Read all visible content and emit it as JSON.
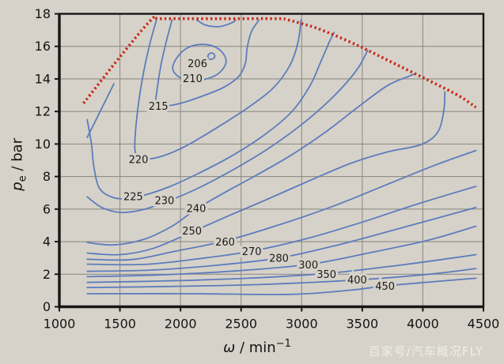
{
  "watermark": {
    "text": "百家号/汽车概况FLY"
  },
  "colors": {
    "background": "#d6d2c9",
    "grid": "#8f8d86",
    "frame": "#161616",
    "tick_text": "#141414",
    "contour_line": "#5d7cbc",
    "contour_label": "#1b1b1b",
    "full_load": "#c8281c"
  },
  "chart_data": {
    "type": "contour",
    "description": "Engine BSFC map: brake specific fuel consumption contours (g/kWh) over speed and brake mean effective pressure, with red dashed full-load limit curve",
    "xlabel_symbol": "ω",
    "xlabel_unit": "min",
    "xlabel_exponent": "−1",
    "ylabel_symbol": "p",
    "ylabel_subscript": "e",
    "ylabel_unit": "bar",
    "label_sep": " / ",
    "x_range": [
      1000,
      4500
    ],
    "y_range": [
      0,
      18
    ],
    "x_ticks": [
      1000,
      1500,
      2000,
      2500,
      3000,
      3500,
      4000,
      4500
    ],
    "y_ticks": [
      0,
      2,
      4,
      6,
      8,
      10,
      12,
      14,
      16,
      18
    ],
    "grid": true,
    "legend": "none",
    "full_load_curve": {
      "style": "dashed",
      "points": [
        [
          1200,
          12.5
        ],
        [
          1500,
          15.35
        ],
        [
          1762,
          17.66
        ],
        [
          1830,
          17.7
        ],
        [
          2300,
          17.7
        ],
        [
          2800,
          17.7
        ],
        [
          2868,
          17.66
        ],
        [
          3000,
          17.4
        ],
        [
          3150,
          17.05
        ],
        [
          3450,
          16.1
        ],
        [
          3750,
          15.0
        ],
        [
          4050,
          13.9
        ],
        [
          4300,
          12.95
        ],
        [
          4438,
          12.25
        ]
      ]
    },
    "contours": [
      {
        "level": 206,
        "label": "206",
        "label_x": 2140,
        "label_y": 14.95,
        "closed": true,
        "points": [
          [
            2235,
            15.52
          ],
          [
            2258,
            15.6
          ],
          [
            2278,
            15.5
          ],
          [
            2282,
            15.35
          ],
          [
            2262,
            15.22
          ],
          [
            2238,
            15.22
          ],
          [
            2226,
            15.36
          ]
        ]
      },
      {
        "level": 210,
        "label": "210",
        "label_x": 2100,
        "label_y": 14.02,
        "closed": true,
        "points": [
          [
            1935,
            14.65
          ],
          [
            1975,
            15.35
          ],
          [
            2060,
            15.92
          ],
          [
            2175,
            16.12
          ],
          [
            2290,
            15.95
          ],
          [
            2362,
            15.45
          ],
          [
            2372,
            14.9
          ],
          [
            2308,
            14.3
          ],
          [
            2195,
            13.97
          ],
          [
            2070,
            13.9
          ],
          [
            1982,
            14.15
          ]
        ]
      },
      {
        "level": 210,
        "label": "",
        "closed": false,
        "points": [
          [
            2135,
            17.62
          ],
          [
            2210,
            17.3
          ],
          [
            2325,
            17.22
          ],
          [
            2425,
            17.45
          ],
          [
            2455,
            17.62
          ]
        ]
      },
      {
        "level": 215,
        "label": "215",
        "label_x": 1818,
        "label_y": 12.32,
        "closed": false,
        "points": [
          [
            1930,
            17.62
          ],
          [
            1886,
            16.4
          ],
          [
            1840,
            14.9
          ],
          [
            1806,
            13.3
          ],
          [
            1802,
            12.6
          ],
          [
            1868,
            12.35
          ],
          [
            2010,
            12.52
          ],
          [
            2190,
            12.97
          ],
          [
            2360,
            13.5
          ],
          [
            2480,
            14.15
          ],
          [
            2535,
            14.95
          ],
          [
            2550,
            15.9
          ],
          [
            2585,
            16.9
          ],
          [
            2648,
            17.62
          ]
        ]
      },
      {
        "level": 220,
        "label": "220",
        "label_x": 1653,
        "label_y": 9.05,
        "closed": false,
        "points": [
          [
            1802,
            17.62
          ],
          [
            1748,
            16.2
          ],
          [
            1695,
            14.4
          ],
          [
            1652,
            12.4
          ],
          [
            1625,
            10.4
          ],
          [
            1632,
            9.4
          ],
          [
            1702,
            9.08
          ],
          [
            1850,
            9.26
          ],
          [
            2050,
            9.9
          ],
          [
            2300,
            11.0
          ],
          [
            2550,
            12.2
          ],
          [
            2760,
            13.4
          ],
          [
            2900,
            14.8
          ],
          [
            2968,
            16.2
          ],
          [
            2995,
            17.62
          ]
        ]
      },
      {
        "level": 225,
        "label": "225",
        "label_x": 1610,
        "label_y": 6.78,
        "closed": false,
        "points": [
          [
            1230,
            11.5
          ],
          [
            1265,
            10.0
          ],
          [
            1285,
            8.6
          ],
          [
            1330,
            7.3
          ],
          [
            1430,
            6.75
          ],
          [
            1560,
            6.63
          ],
          [
            1700,
            6.85
          ],
          [
            1900,
            7.35
          ],
          [
            2150,
            8.2
          ],
          [
            2430,
            9.3
          ],
          [
            2700,
            10.6
          ],
          [
            2920,
            12.0
          ],
          [
            3070,
            13.6
          ],
          [
            3160,
            15.1
          ],
          [
            3230,
            16.3
          ],
          [
            3268,
            16.85
          ]
        ]
      },
      {
        "level": 230,
        "label": "",
        "closed": false,
        "points": [
          [
            1230,
            10.4
          ],
          [
            1290,
            11.3
          ],
          [
            1370,
            12.5
          ],
          [
            1450,
            13.7
          ]
        ]
      },
      {
        "level": 230,
        "label": "230",
        "label_x": 1868,
        "label_y": 6.52,
        "closed": false,
        "points": [
          [
            1230,
            6.75
          ],
          [
            1350,
            6.1
          ],
          [
            1500,
            5.8
          ],
          [
            1680,
            5.95
          ],
          [
            1900,
            6.5
          ],
          [
            2150,
            7.3
          ],
          [
            2430,
            8.4
          ],
          [
            2720,
            9.7
          ],
          [
            3000,
            11.2
          ],
          [
            3260,
            12.9
          ],
          [
            3450,
            14.5
          ],
          [
            3545,
            15.75
          ]
        ]
      },
      {
        "level": 240,
        "label": "240",
        "label_x": 2130,
        "label_y": 6.05,
        "closed": false,
        "points": [
          [
            1230,
            3.95
          ],
          [
            1450,
            3.8
          ],
          [
            1700,
            4.15
          ],
          [
            1930,
            4.95
          ],
          [
            2130,
            6.0
          ],
          [
            2360,
            7.0
          ],
          [
            2630,
            8.1
          ],
          [
            2910,
            9.3
          ],
          [
            3190,
            10.7
          ],
          [
            3470,
            12.3
          ],
          [
            3710,
            13.6
          ],
          [
            3880,
            14.15
          ],
          [
            3930,
            14.3
          ]
        ]
      },
      {
        "level": 250,
        "label": "250",
        "label_x": 2095,
        "label_y": 4.65,
        "closed": false,
        "points": [
          [
            1230,
            3.3
          ],
          [
            1500,
            3.2
          ],
          [
            1780,
            3.6
          ],
          [
            2095,
            4.6
          ],
          [
            2400,
            5.6
          ],
          [
            2700,
            6.55
          ],
          [
            3050,
            7.7
          ],
          [
            3400,
            8.8
          ],
          [
            3700,
            9.5
          ],
          [
            3980,
            9.95
          ],
          [
            4120,
            10.7
          ],
          [
            4172,
            12.0
          ],
          [
            4182,
            13.2
          ]
        ]
      },
      {
        "level": 260,
        "label": "260",
        "label_x": 2368,
        "label_y": 3.97,
        "closed": false,
        "points": [
          [
            1230,
            2.92
          ],
          [
            1600,
            2.9
          ],
          [
            1950,
            3.4
          ],
          [
            2370,
            4.05
          ],
          [
            2800,
            5.0
          ],
          [
            3250,
            6.15
          ],
          [
            3700,
            7.5
          ],
          [
            4100,
            8.7
          ],
          [
            4438,
            9.6
          ]
        ]
      },
      {
        "level": 270,
        "label": "270",
        "label_x": 2588,
        "label_y": 3.4,
        "closed": false,
        "points": [
          [
            1230,
            2.62
          ],
          [
            1700,
            2.6
          ],
          [
            2150,
            2.95
          ],
          [
            2590,
            3.42
          ],
          [
            3050,
            4.2
          ],
          [
            3500,
            5.2
          ],
          [
            3950,
            6.3
          ],
          [
            4438,
            7.4
          ]
        ]
      },
      {
        "level": 280,
        "label": "280",
        "label_x": 2812,
        "label_y": 2.98,
        "closed": false,
        "points": [
          [
            1230,
            2.18
          ],
          [
            1750,
            2.25
          ],
          [
            2300,
            2.55
          ],
          [
            2815,
            3.0
          ],
          [
            3300,
            3.8
          ],
          [
            3800,
            4.8
          ],
          [
            4438,
            6.1
          ]
        ]
      },
      {
        "level": 300,
        "label": "300",
        "label_x": 3055,
        "label_y": 2.57,
        "closed": false,
        "points": [
          [
            1230,
            1.85
          ],
          [
            1800,
            1.95
          ],
          [
            2450,
            2.2
          ],
          [
            3057,
            2.6
          ],
          [
            3550,
            3.3
          ],
          [
            4050,
            4.1
          ],
          [
            4438,
            4.95
          ]
        ]
      },
      {
        "level": 350,
        "label": "350",
        "label_x": 3205,
        "label_y": 1.98,
        "closed": false,
        "points": [
          [
            1230,
            1.5
          ],
          [
            1850,
            1.58
          ],
          [
            2550,
            1.75
          ],
          [
            3207,
            2.05
          ],
          [
            3750,
            2.5
          ],
          [
            4250,
            3.0
          ],
          [
            4438,
            3.2
          ]
        ]
      },
      {
        "level": 400,
        "label": "400",
        "label_x": 3458,
        "label_y": 1.64,
        "closed": false,
        "points": [
          [
            1230,
            1.18
          ],
          [
            1950,
            1.25
          ],
          [
            2700,
            1.38
          ],
          [
            3461,
            1.65
          ],
          [
            4050,
            2.0
          ],
          [
            4438,
            2.35
          ]
        ]
      },
      {
        "level": 450,
        "label": "450",
        "label_x": 3688,
        "label_y": 1.26,
        "closed": false,
        "points": [
          [
            1230,
            0.8
          ],
          [
            2100,
            0.8
          ],
          [
            2900,
            0.76
          ],
          [
            3400,
            1.02
          ],
          [
            3690,
            1.28
          ],
          [
            4100,
            1.55
          ],
          [
            4438,
            1.75
          ]
        ]
      }
    ]
  }
}
